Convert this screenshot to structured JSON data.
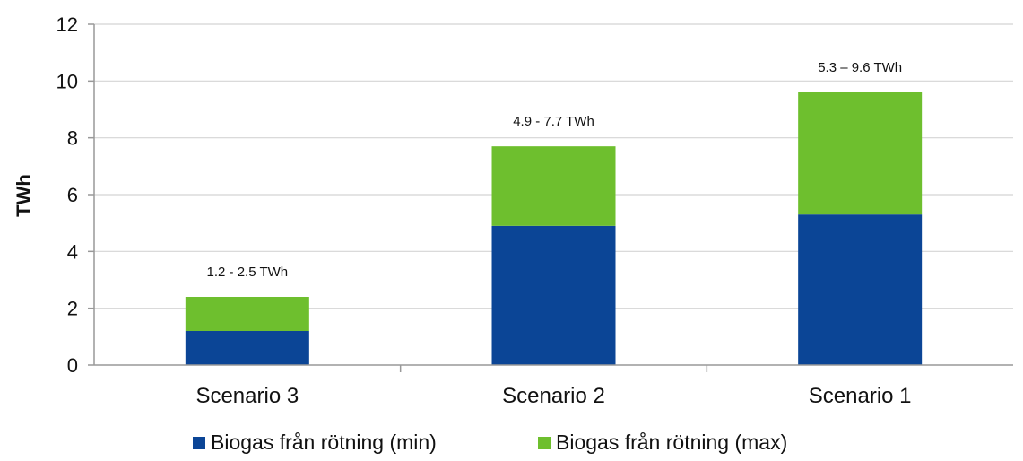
{
  "chart_data": {
    "type": "bar",
    "stacked": true,
    "title": "",
    "xlabel": "",
    "ylabel": "TWh",
    "ylim": [
      0,
      12
    ],
    "yticks": [
      0,
      2,
      4,
      6,
      8,
      10,
      12
    ],
    "grid": true,
    "legend_position": "bottom",
    "categories": [
      "Scenario 3",
      "Scenario 2",
      "Scenario 1"
    ],
    "series": [
      {
        "name": "Biogas från rötning (min)",
        "color": "#0b4596",
        "values": [
          1.2,
          4.9,
          5.3
        ]
      },
      {
        "name": "Biogas från rötning (max)",
        "color": "#6ebf2e",
        "values": [
          1.2,
          2.8,
          4.3
        ]
      }
    ],
    "data_labels": [
      "1.2 - 2.5 TWh",
      "4.9 - 7.7 TWh",
      "5.3 – 9.6 TWh"
    ]
  }
}
